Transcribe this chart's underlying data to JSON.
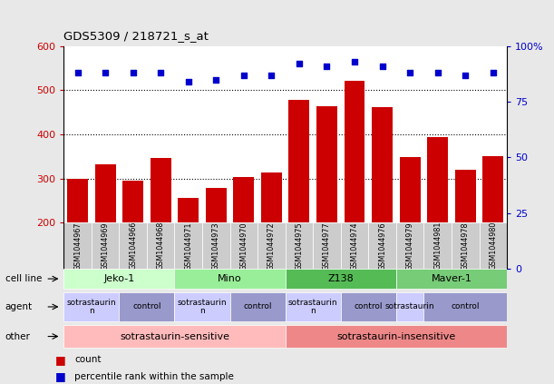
{
  "title": "GDS5309 / 218721_s_at",
  "samples": [
    "GSM1044967",
    "GSM1044969",
    "GSM1044966",
    "GSM1044968",
    "GSM1044971",
    "GSM1044973",
    "GSM1044970",
    "GSM1044972",
    "GSM1044975",
    "GSM1044977",
    "GSM1044974",
    "GSM1044976",
    "GSM1044979",
    "GSM1044981",
    "GSM1044978",
    "GSM1044980"
  ],
  "counts": [
    300,
    332,
    296,
    346,
    256,
    280,
    303,
    314,
    478,
    463,
    522,
    462,
    348,
    395,
    320,
    350
  ],
  "percentiles": [
    88,
    88,
    88,
    88,
    84,
    85,
    87,
    87,
    92,
    91,
    93,
    91,
    88,
    88,
    87,
    88
  ],
  "ylim_left": [
    200,
    600
  ],
  "ylim_right": [
    0,
    100
  ],
  "yticks_left": [
    200,
    300,
    400,
    500,
    600
  ],
  "yticks_right": [
    0,
    25,
    50,
    75,
    100
  ],
  "ytick_right_labels": [
    "0",
    "25",
    "50",
    "75",
    "100%"
  ],
  "hlines": [
    300,
    400,
    500
  ],
  "bar_color": "#cc0000",
  "dot_color": "#0000cc",
  "cell_lines": [
    {
      "label": "Jeko-1",
      "start": 0,
      "end": 4,
      "color": "#ccffcc"
    },
    {
      "label": "Mino",
      "start": 4,
      "end": 8,
      "color": "#99ee99"
    },
    {
      "label": "Z138",
      "start": 8,
      "end": 12,
      "color": "#55bb55"
    },
    {
      "label": "Maver-1",
      "start": 12,
      "end": 16,
      "color": "#77cc77"
    }
  ],
  "agents": [
    {
      "label": "sotrastaurin\nn",
      "start": 0,
      "end": 2,
      "color": "#ccccff"
    },
    {
      "label": "control",
      "start": 2,
      "end": 4,
      "color": "#9999cc"
    },
    {
      "label": "sotrastaurin\nn",
      "start": 4,
      "end": 6,
      "color": "#ccccff"
    },
    {
      "label": "control",
      "start": 6,
      "end": 8,
      "color": "#9999cc"
    },
    {
      "label": "sotrastaurin\nn",
      "start": 8,
      "end": 10,
      "color": "#ccccff"
    },
    {
      "label": "control",
      "start": 10,
      "end": 12,
      "color": "#9999cc"
    },
    {
      "label": "sotrastaurin",
      "start": 12,
      "end": 13,
      "color": "#ccccff"
    },
    {
      "label": "control",
      "start": 13,
      "end": 16,
      "color": "#9999cc"
    }
  ],
  "others": [
    {
      "label": "sotrastaurin-sensitive",
      "start": 0,
      "end": 8,
      "color": "#ffbbbb"
    },
    {
      "label": "sotrastaurin-insensitive",
      "start": 8,
      "end": 16,
      "color": "#ee8888"
    }
  ],
  "row_labels": [
    "cell line",
    "agent",
    "other"
  ],
  "legend_items": [
    {
      "label": "count",
      "color": "#cc0000"
    },
    {
      "label": "percentile rank within the sample",
      "color": "#0000cc"
    }
  ],
  "bg_color": "#e8e8e8",
  "plot_bg": "#ffffff",
  "sample_box_color": "#cccccc",
  "axis_color_left": "#cc0000",
  "axis_color_right": "#0000cc",
  "grid_color": "#000000"
}
